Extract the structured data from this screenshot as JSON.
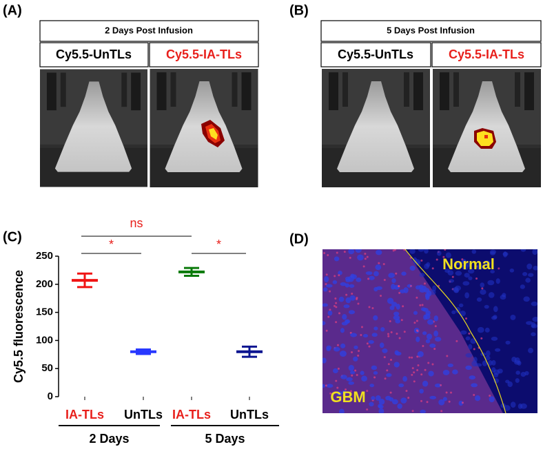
{
  "panels": {
    "A": {
      "label": "(A)",
      "title": "2 Days Post Infusion",
      "left": "Cy5.5-UnTLs",
      "right": "Cy5.5-IA-TLs"
    },
    "B": {
      "label": "(B)",
      "title": "5 Days Post Infusion",
      "left": "Cy5.5-UnTLs",
      "right": "Cy5.5-IA-TLs"
    },
    "C": {
      "label": "(C)"
    },
    "D": {
      "label": "(D)",
      "region_top": "Normal",
      "region_bottom": "GBM"
    }
  },
  "chart_data": {
    "type": "errorbar",
    "ylabel": "Cy5.5 fluorescence",
    "categories": [
      "IA-TLs",
      "UnTLs",
      "IA-TLs",
      "UnTLs"
    ],
    "category_colors": [
      "#e8201c",
      "#000000",
      "#e8201c",
      "#000000"
    ],
    "values": [
      207,
      80,
      222,
      80
    ],
    "errors": [
      12,
      4,
      7,
      9
    ],
    "colors": [
      "#f01414",
      "#2838ff",
      "#0a7a0a",
      "#0a1490"
    ],
    "groups": [
      "2 Days",
      "5 Days"
    ],
    "annotations": [
      "ns",
      "*",
      "*"
    ],
    "ylim": [
      0,
      250
    ],
    "yticks": [
      0,
      50,
      100,
      150,
      200,
      250
    ]
  }
}
